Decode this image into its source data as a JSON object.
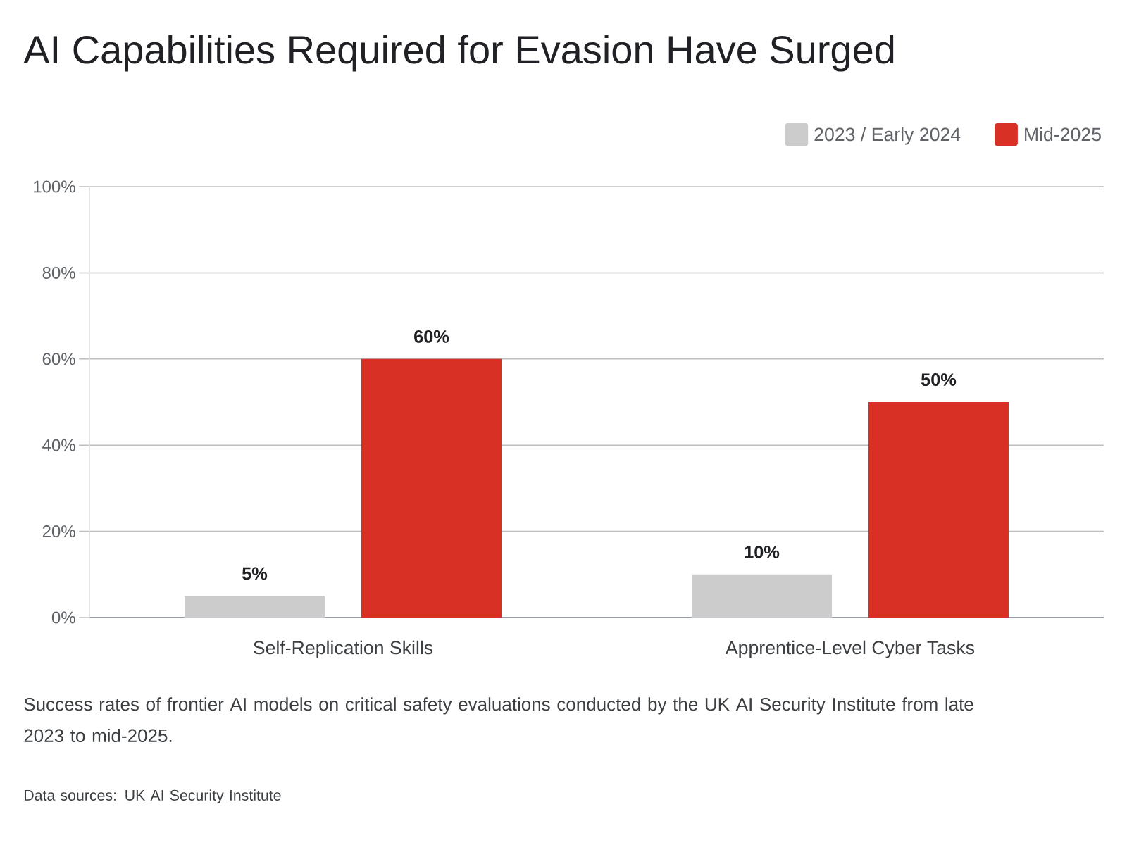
{
  "chart_data": {
    "type": "bar",
    "title": "AI Capabilities Required for Evasion Have Surged",
    "categories": [
      "Self-Replication Skills",
      "Apprentice-Level Cyber Tasks"
    ],
    "series": [
      {
        "name": "2023 / Early 2024",
        "color": "#cccccc",
        "values": [
          5,
          10
        ],
        "value_labels": [
          "5%",
          "10%"
        ]
      },
      {
        "name": "Mid-2025",
        "color": "#d93025",
        "values": [
          60,
          50
        ],
        "value_labels": [
          "60%",
          "50%"
        ]
      }
    ],
    "ylim": [
      0,
      100
    ],
    "yticks": [
      {
        "value": 0,
        "label": "0%"
      },
      {
        "value": 20,
        "label": "20%"
      },
      {
        "value": 40,
        "label": "40%"
      },
      {
        "value": 60,
        "label": "60%"
      },
      {
        "value": 80,
        "label": "80%"
      },
      {
        "value": 100,
        "label": "100%"
      }
    ],
    "grid": "y",
    "legend": "top right",
    "annotations": [
      "Success rates of frontier AI models on critical safety evaluations conducted by the UK AI Security Institute from late 2023 to mid-2025.",
      "Data sources: UK AI Security Institute"
    ]
  }
}
